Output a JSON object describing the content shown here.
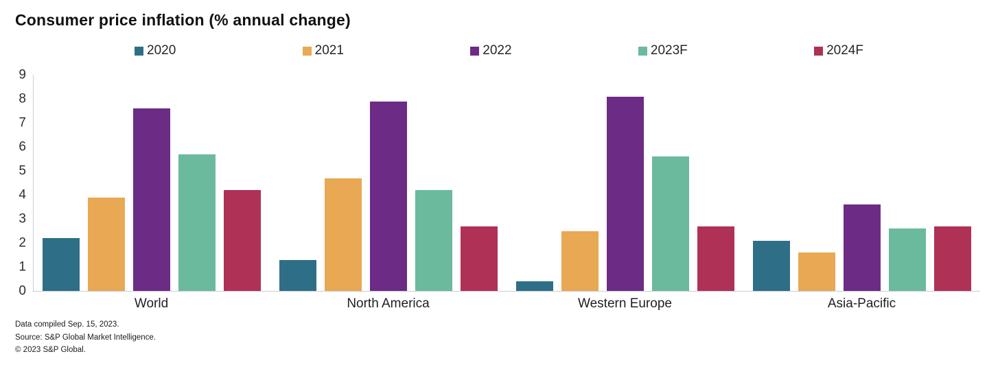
{
  "title": "Consumer price inflation (% annual change)",
  "footer": {
    "compiled": "Data compiled Sep. 15, 2023.",
    "source": "Source: S&P Global Market Intelligence.",
    "copyright": "© 2023 S&P Global."
  },
  "chart_data": {
    "type": "bar",
    "title": "Consumer price inflation (% annual change)",
    "categories": [
      "World",
      "North America",
      "Western Europe",
      "Asia-Pacific"
    ],
    "series": [
      {
        "name": "2020",
        "color": "#2E6F87",
        "values": [
          2.2,
          1.3,
          0.4,
          2.1
        ]
      },
      {
        "name": "2021",
        "color": "#E9A853",
        "values": [
          3.9,
          4.7,
          2.5,
          1.6
        ]
      },
      {
        "name": "2022",
        "color": "#6C2B85",
        "values": [
          7.6,
          7.9,
          8.1,
          3.6
        ]
      },
      {
        "name": "2023F",
        "color": "#6CBA9D",
        "values": [
          5.7,
          4.2,
          5.6,
          2.6
        ]
      },
      {
        "name": "2024F",
        "color": "#AF3155",
        "values": [
          4.2,
          2.7,
          2.7,
          2.7
        ]
      }
    ],
    "xlabel": "",
    "ylabel": "",
    "ylim": [
      0,
      9
    ],
    "yticks": [
      0,
      1,
      2,
      3,
      4,
      5,
      6,
      7,
      8,
      9
    ],
    "grid": false,
    "legend_position": "top"
  }
}
